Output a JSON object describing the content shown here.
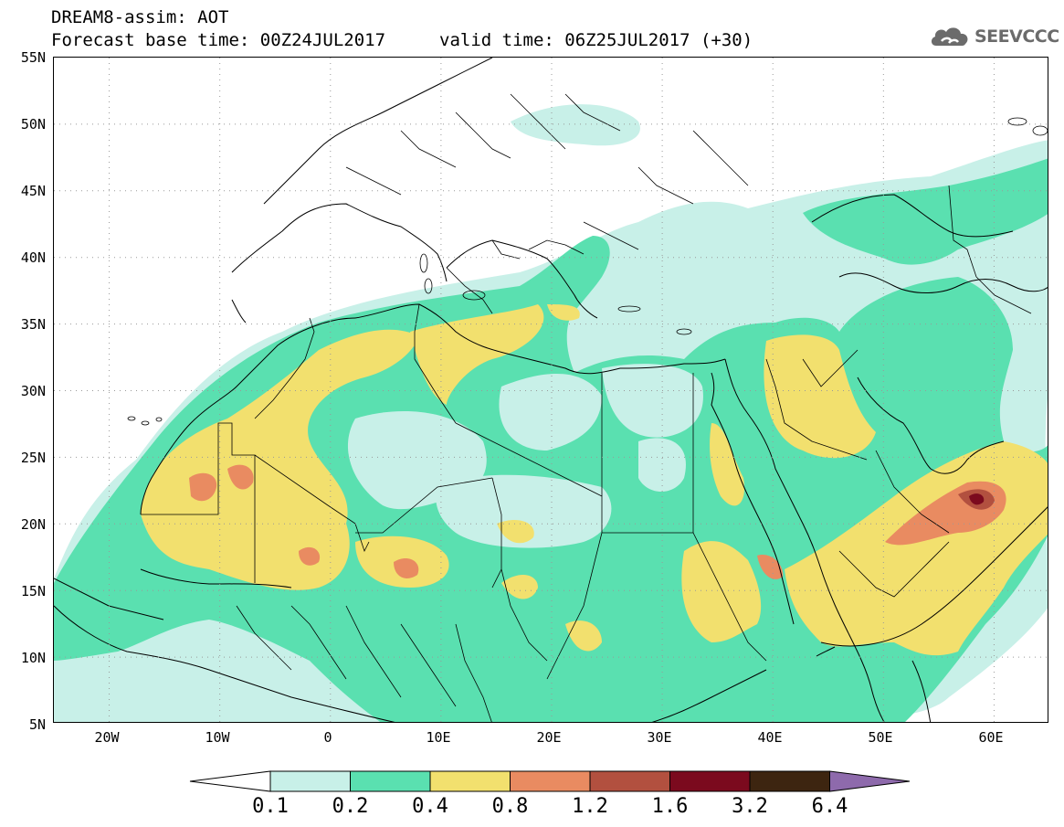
{
  "header": {
    "title_line1": "DREAM8-assim: AOT",
    "title_line2": "Forecast base time: 00Z24JUL2017",
    "valid_time": "valid time: 06Z25JUL2017 (+30)",
    "logo_text": "SEEVCCC",
    "logo_icon": "cloud-icon"
  },
  "axes": {
    "lat_labels": [
      "55N",
      "50N",
      "45N",
      "40N",
      "35N",
      "30N",
      "25N",
      "20N",
      "15N",
      "10N",
      "5N"
    ],
    "lon_labels": [
      "20W",
      "10W",
      "0",
      "10E",
      "20E",
      "30E",
      "40E",
      "50E",
      "60E"
    ]
  },
  "colorbar": {
    "levels": [
      "0.1",
      "0.2",
      "0.4",
      "0.8",
      "1.2",
      "1.6",
      "3.2",
      "6.4"
    ],
    "colors": [
      "#ffffff",
      "#c8f0e8",
      "#5ae0b0",
      "#f2e06e",
      "#e98b61",
      "#b2503f",
      "#7b0a1e",
      "#3d2510",
      "#8e6aac"
    ]
  },
  "map": {
    "extent_lon": [
      -25,
      65
    ],
    "extent_lat": [
      5,
      55
    ],
    "grid": "dotted",
    "colors": {
      "light": "#c8f0e8",
      "green": "#5ae0b0",
      "yellow": "#f2e06e",
      "orange": "#e98b61",
      "red": "#b2503f",
      "darkred": "#7b0a1e"
    }
  }
}
